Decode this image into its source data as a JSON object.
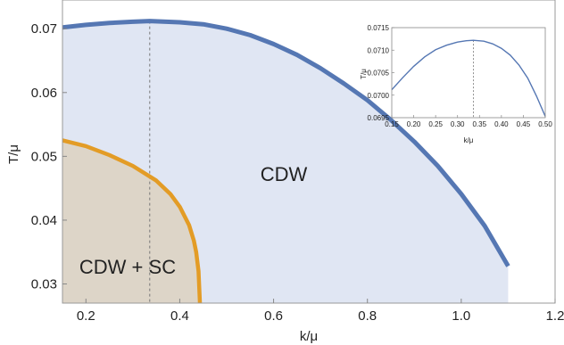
{
  "chart_data": [
    {
      "type": "line",
      "title": "",
      "xlabel": "k/μ",
      "ylabel": "T/μ",
      "xlim": [
        0.15,
        1.2
      ],
      "ylim": [
        0.027,
        0.0745
      ],
      "x_ticks": [
        0.2,
        0.4,
        0.6,
        0.8,
        1.0,
        1.2
      ],
      "x_tick_labels": [
        "0.2",
        "0.4",
        "0.6",
        "0.8",
        "1.0",
        "1.2"
      ],
      "y_ticks": [
        0.03,
        0.04,
        0.05,
        0.06,
        0.07
      ],
      "y_tick_labels": [
        "0.03",
        "0.04",
        "0.05",
        "0.06",
        "0.07"
      ],
      "grid": false,
      "series": [
        {
          "color": "#5577b3",
          "fill": "#e0e6f3",
          "x": [
            0.15,
            0.2,
            0.25,
            0.3,
            0.336,
            0.4,
            0.45,
            0.5,
            0.55,
            0.6,
            0.65,
            0.7,
            0.75,
            0.8,
            0.85,
            0.9,
            0.95,
            1.0,
            1.05,
            1.1
          ],
          "y": [
            0.0702,
            0.0706,
            0.0709,
            0.0711,
            0.0712,
            0.071,
            0.0707,
            0.07,
            0.069,
            0.0676,
            0.0659,
            0.0638,
            0.0614,
            0.0588,
            0.0557,
            0.0523,
            0.0485,
            0.0441,
            0.0391,
            0.0328
          ]
        },
        {
          "color": "#e39c26",
          "fill": "#ddd5c8",
          "x": [
            0.15,
            0.2,
            0.25,
            0.3,
            0.35,
            0.38,
            0.4,
            0.42,
            0.43,
            0.435,
            0.44,
            0.443
          ],
          "y": [
            0.0525,
            0.0516,
            0.0502,
            0.0485,
            0.0462,
            0.0441,
            0.0421,
            0.0392,
            0.0368,
            0.035,
            0.032,
            0.027
          ]
        }
      ],
      "vline_x": 0.336,
      "annotations": [
        "CDW",
        "CDW + SC"
      ]
    },
    {
      "type": "line",
      "title": "",
      "xlabel": "k/μ",
      "ylabel": "T/μ",
      "xlim": [
        0.15,
        0.5
      ],
      "ylim": [
        0.0695,
        0.0715
      ],
      "x_ticks": [
        0.15,
        0.2,
        0.25,
        0.3,
        0.35,
        0.4,
        0.45,
        0.5
      ],
      "x_tick_labels": [
        "0.15",
        "0.20",
        "0.25",
        "0.30",
        "0.35",
        "0.40",
        "0.45",
        "0.50"
      ],
      "y_ticks": [
        0.0695,
        0.07,
        0.0705,
        0.071,
        0.0715
      ],
      "y_tick_labels": [
        "0.0695",
        "0.0700",
        "0.0705",
        "0.0710",
        "0.0715"
      ],
      "grid": false,
      "series": [
        {
          "color": "#5577b3",
          "x": [
            0.15,
            0.175,
            0.2,
            0.225,
            0.25,
            0.275,
            0.3,
            0.32,
            0.336,
            0.36,
            0.38,
            0.4,
            0.42,
            0.44,
            0.46,
            0.48,
            0.5
          ],
          "y": [
            0.07012,
            0.07039,
            0.07064,
            0.07085,
            0.07101,
            0.07111,
            0.07118,
            0.07121,
            0.07122,
            0.0712,
            0.07114,
            0.07104,
            0.07089,
            0.07067,
            0.07038,
            0.06998,
            0.06953
          ]
        }
      ],
      "vline_x": 0.336
    }
  ]
}
